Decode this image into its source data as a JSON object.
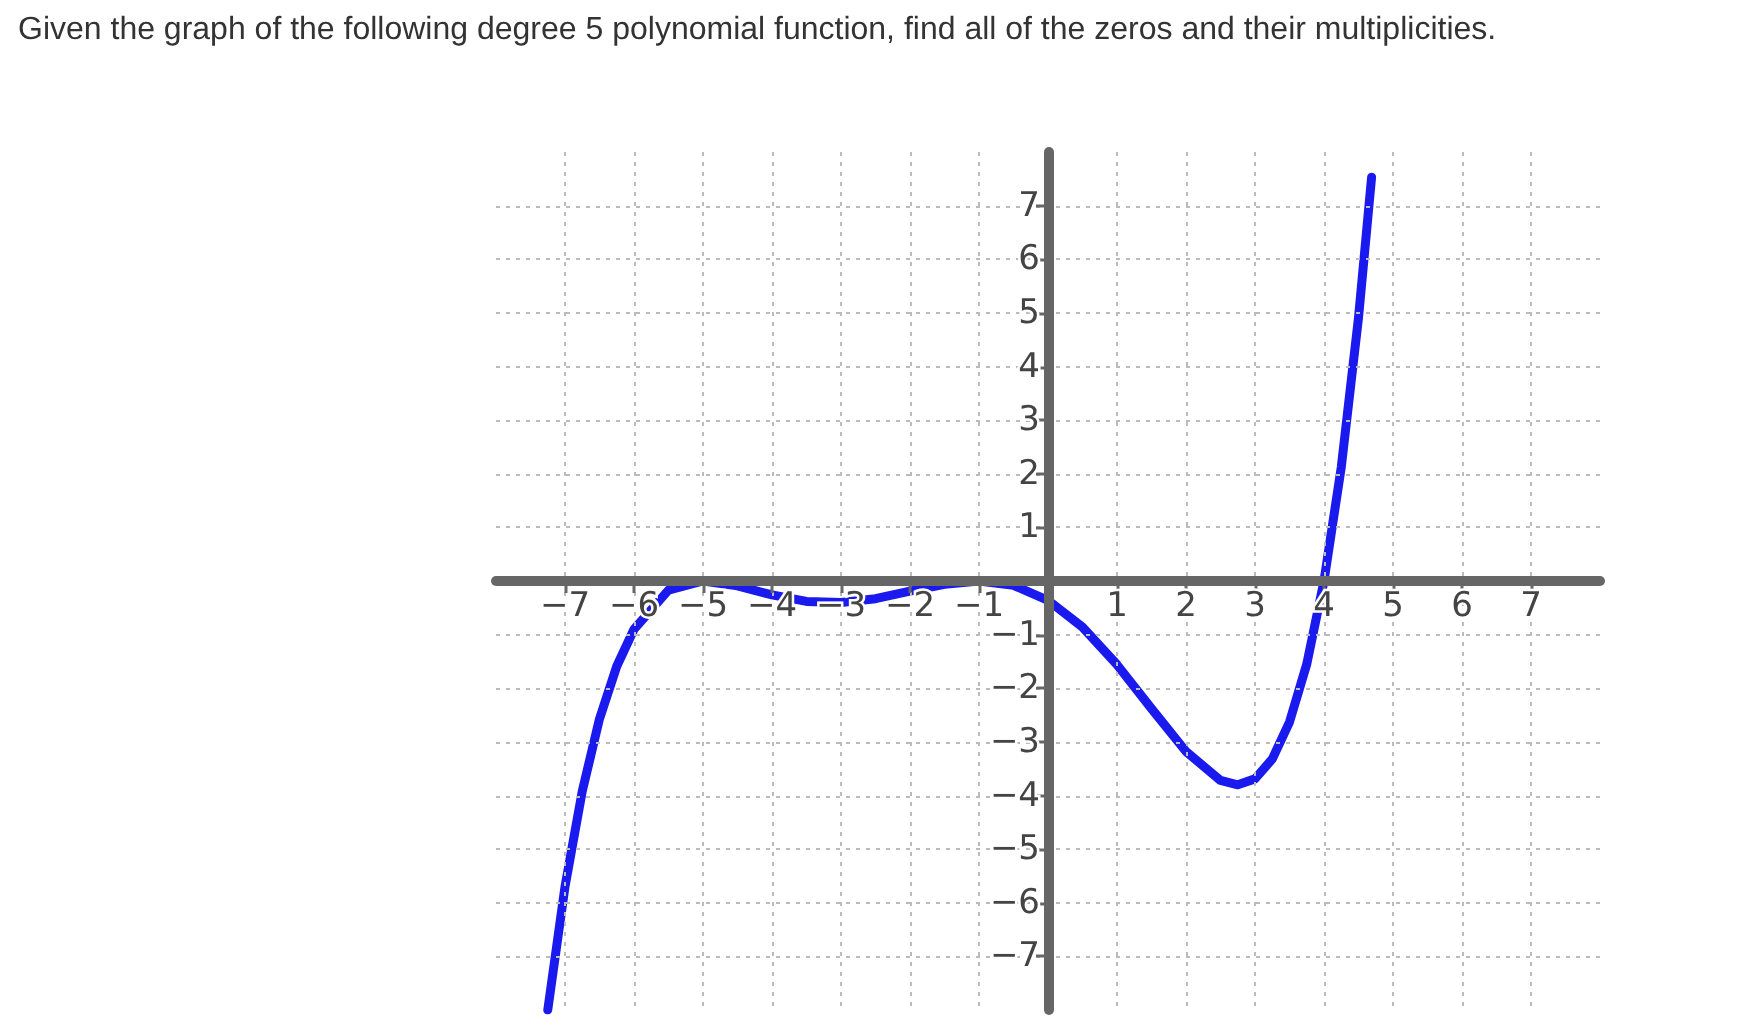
{
  "chart_data": {
    "type": "line",
    "title": "Given the graph of the following degree 5 polynomial function, find all of the zeros and their multiplicities.",
    "x": [
      -7.25,
      -7,
      -6.75,
      -6.5,
      -6.25,
      -6,
      -5.5,
      -5,
      -4.5,
      -4,
      -3.5,
      -3,
      -2.5,
      -2,
      -1.5,
      -1,
      -0.5,
      0,
      0.5,
      1,
      1.5,
      2,
      2.5,
      2.75,
      3,
      3.25,
      3.5,
      3.75,
      4,
      4.25,
      4.5,
      4.69
    ],
    "series": [
      {
        "color": "#1a1aee",
        "values": [
          -8.0,
          -5.7,
          -3.92,
          -2.57,
          -1.59,
          -0.9,
          -0.17,
          0,
          -0.09,
          -0.26,
          -0.38,
          -0.4,
          -0.33,
          -0.19,
          -0.06,
          0,
          -0.08,
          -0.36,
          -0.86,
          -1.56,
          -2.38,
          -3.18,
          -3.72,
          -3.8,
          -3.69,
          -3.32,
          -2.63,
          -1.55,
          0,
          2.12,
          4.91,
          7.53
        ]
      }
    ],
    "xlim": [
      -8,
      8
    ],
    "ylim": [
      -8,
      8
    ],
    "xticks": [
      {
        "value": -7,
        "label": "−7"
      },
      {
        "value": -6,
        "label": "−6"
      },
      {
        "value": -5,
        "label": "−5"
      },
      {
        "value": -4,
        "label": "−4"
      },
      {
        "value": -3,
        "label": "−3"
      },
      {
        "value": -2,
        "label": "−2"
      },
      {
        "value": -1,
        "label": "−1"
      },
      1,
      2,
      3,
      4,
      5,
      6,
      7
    ],
    "yticks": [
      {
        "value": -7,
        "label": "−7"
      },
      {
        "value": -6,
        "label": "−6"
      },
      {
        "value": -5,
        "label": "−5"
      },
      {
        "value": -4,
        "label": "−4"
      },
      {
        "value": -3,
        "label": "−3"
      },
      {
        "value": -2,
        "label": "−2"
      },
      {
        "value": -1,
        "label": "−1"
      },
      1,
      2,
      3,
      4,
      5,
      6,
      7
    ],
    "grid": true,
    "marker": "none",
    "line_style": "solid"
  }
}
